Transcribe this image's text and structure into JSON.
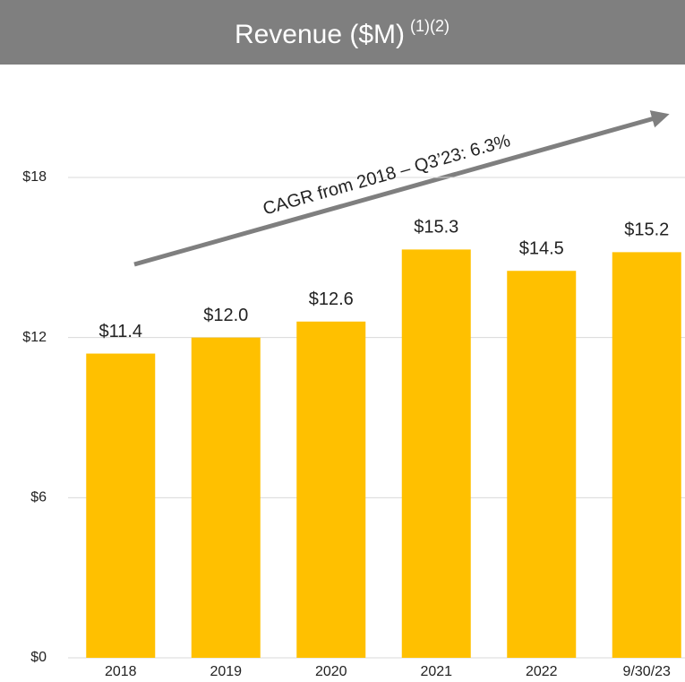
{
  "chart_data": {
    "type": "bar",
    "title": "Revenue ($M)",
    "title_superscript": "(1)(2)",
    "annotation": "CAGR from 2018 – Q3’23: 6.3%",
    "categories": [
      "2018",
      "2019",
      "2020",
      "2021",
      "2022",
      "9/30/23"
    ],
    "values": [
      11.4,
      12.0,
      12.6,
      15.3,
      14.5,
      15.2
    ],
    "value_labels": [
      "$11.4",
      "$12.0",
      "$12.6",
      "$15.3",
      "$14.5",
      "$15.2"
    ],
    "color": "#ffc000",
    "ylim": [
      0,
      18
    ],
    "yticks": [
      {
        "value": 0,
        "label": "$0"
      },
      {
        "value": 6,
        "label": "$6"
      },
      {
        "value": 12,
        "label": "$12"
      },
      {
        "value": 18,
        "label": "$18"
      }
    ],
    "grid": true
  }
}
